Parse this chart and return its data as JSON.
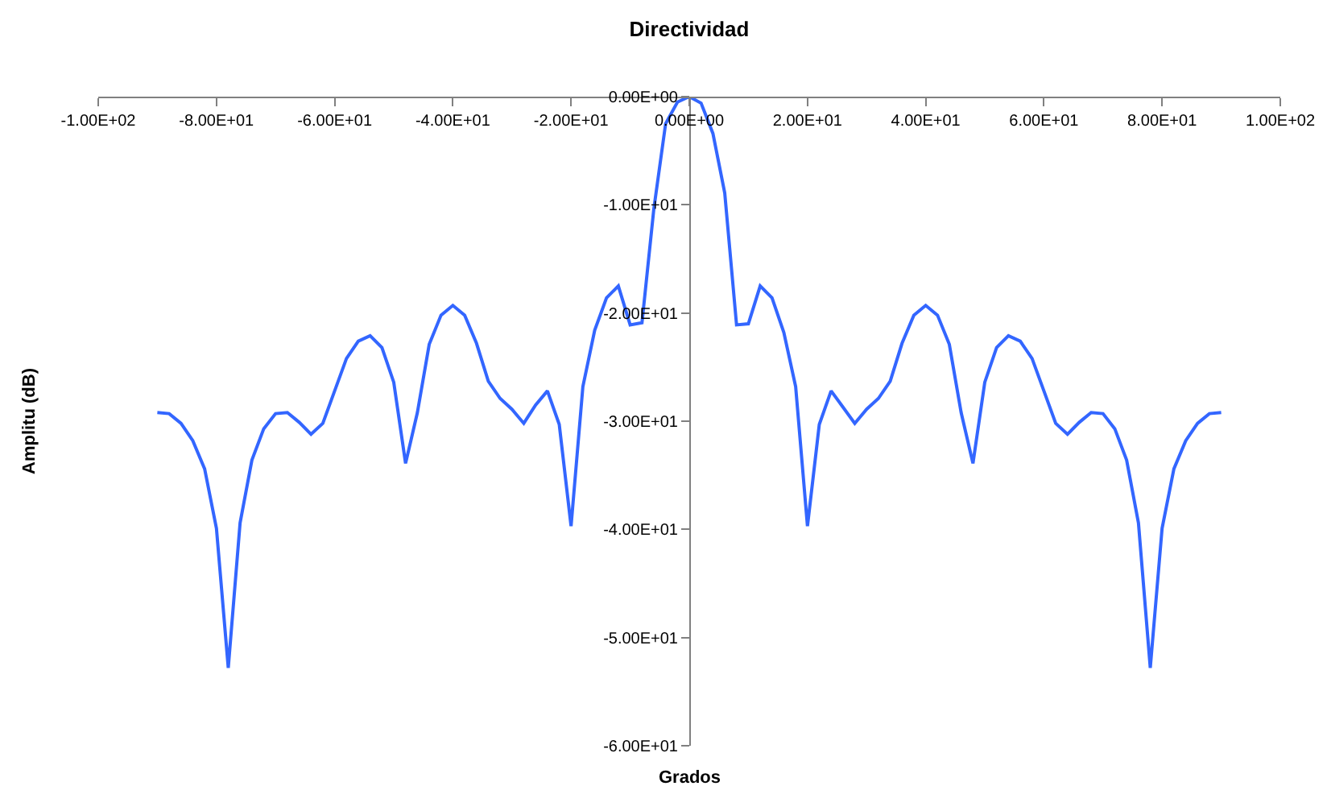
{
  "chart_data": {
    "type": "line",
    "title": "Directividad",
    "xlabel": "Grados",
    "ylabel": "Amplitu (dB)",
    "x": [
      -90,
      -88,
      -86,
      -84,
      -82,
      -80,
      -78,
      -76,
      -74,
      -72,
      -70,
      -68,
      -66,
      -64,
      -62,
      -60,
      -58,
      -56,
      -54,
      -52,
      -50,
      -48,
      -46,
      -44,
      -42,
      -40,
      -38,
      -36,
      -34,
      -32,
      -30,
      -28,
      -26,
      -24,
      -22,
      -20,
      -18,
      -16,
      -14,
      -12,
      -10,
      -8,
      -6,
      -4,
      -2,
      0,
      2,
      4,
      6,
      8,
      10,
      12,
      14,
      16,
      18,
      20,
      22,
      24,
      26,
      28,
      30,
      32,
      34,
      36,
      38,
      40,
      42,
      44,
      46,
      48,
      50,
      52,
      54,
      56,
      58,
      60,
      62,
      64,
      66,
      68,
      70,
      72,
      74,
      76,
      78,
      80,
      82,
      84,
      86,
      88,
      90
    ],
    "series": [
      {
        "color": "#3366ff",
        "values": [
          -29.2,
          -29.3,
          -30.2,
          -31.8,
          -34.4,
          -39.9,
          -52.8,
          -39.4,
          -33.6,
          -30.7,
          -29.3,
          -29.2,
          -30.1,
          -31.2,
          -30.2,
          -27.2,
          -24.2,
          -22.6,
          -22.1,
          -23.2,
          -26.4,
          -33.9,
          -29.2,
          -22.9,
          -20.2,
          -19.3,
          -20.2,
          -22.8,
          -26.3,
          -27.9,
          -28.9,
          -30.2,
          -28.5,
          -27.2,
          -30.3,
          -39.7,
          -26.8,
          -21.6,
          -18.6,
          -17.5,
          -21.1,
          -20.9,
          -10.4,
          -2.5,
          -0.5,
          0,
          -0.6,
          -3.4,
          -8.9,
          -21.1,
          -21.0,
          -17.5,
          -18.6,
          -21.8,
          -26.8,
          -39.7,
          -30.3,
          -27.2,
          -28.7,
          -30.2,
          -28.9,
          -27.9,
          -26.3,
          -22.8,
          -20.2,
          -19.3,
          -20.2,
          -22.9,
          -29.2,
          -33.9,
          -26.4,
          -23.2,
          -22.1,
          -22.6,
          -24.2,
          -27.2,
          -30.2,
          -31.2,
          -30.1,
          -29.2,
          -29.3,
          -30.7,
          -33.6,
          -39.4,
          -52.8,
          -39.9,
          -34.4,
          -31.8,
          -30.2,
          -29.3,
          -29.2
        ]
      }
    ],
    "xlim": [
      -100,
      100
    ],
    "xticks": [
      {
        "value": -100,
        "label": "-1.00E+02"
      },
      {
        "value": -80,
        "label": "-8.00E+01"
      },
      {
        "value": -60,
        "label": "-6.00E+01"
      },
      {
        "value": -40,
        "label": "-4.00E+01"
      },
      {
        "value": -20,
        "label": "-2.00E+01"
      },
      {
        "value": 0,
        "label": "0.00E+00"
      },
      {
        "value": 20,
        "label": "2.00E+01"
      },
      {
        "value": 40,
        "label": "4.00E+01"
      },
      {
        "value": 60,
        "label": "6.00E+01"
      },
      {
        "value": 80,
        "label": "8.00E+01"
      },
      {
        "value": 100,
        "label": "1.00E+02"
      }
    ],
    "ylim": [
      -60,
      0
    ],
    "yticks": [
      {
        "value": -60,
        "label": "-6.00E+01"
      },
      {
        "value": -50,
        "label": "-5.00E+01"
      },
      {
        "value": -40,
        "label": "-4.00E+01"
      },
      {
        "value": -30,
        "label": "-3.00E+01"
      },
      {
        "value": -20,
        "label": "-2.00E+01"
      },
      {
        "value": -10,
        "label": "-1.00E+01"
      },
      {
        "value": 0,
        "label": "0.00E+00"
      }
    ],
    "line_style": "solid"
  }
}
